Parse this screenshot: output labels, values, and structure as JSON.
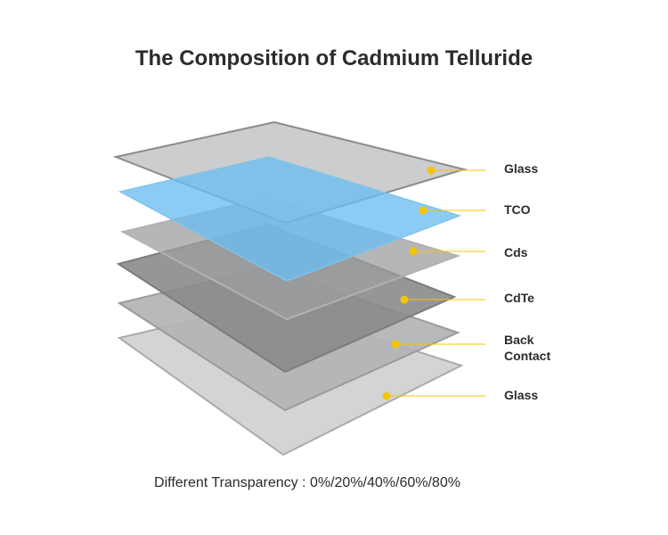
{
  "title": "The Composition of Cadmium Telluride",
  "layers": [
    {
      "label": "Glass"
    },
    {
      "label": "TCO"
    },
    {
      "label": "Cds"
    },
    {
      "label": "CdTe"
    },
    {
      "label": "Back Contact"
    },
    {
      "label": "Glass"
    }
  ],
  "caption": "Different Transparency : 0%/20%/40%/60%/80%"
}
